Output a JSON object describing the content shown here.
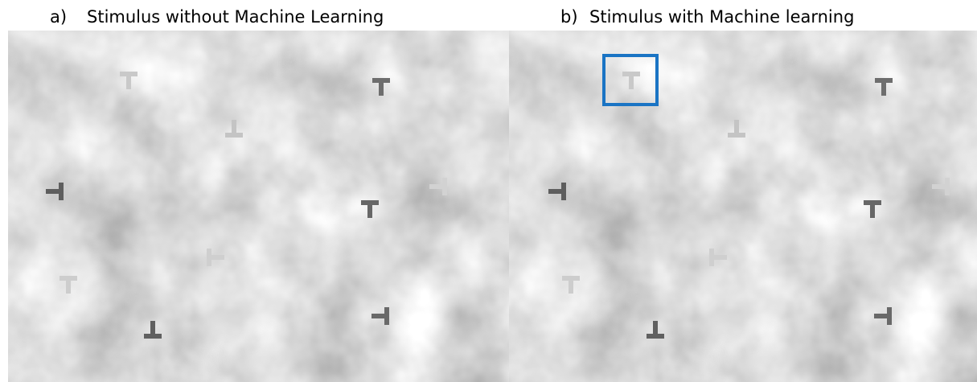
{
  "panels": [
    {
      "letter": "a)",
      "title": "Stimulus without Machine Learning"
    },
    {
      "letter": "b)",
      "title": "Stimulus with Machine learning"
    }
  ]
}
